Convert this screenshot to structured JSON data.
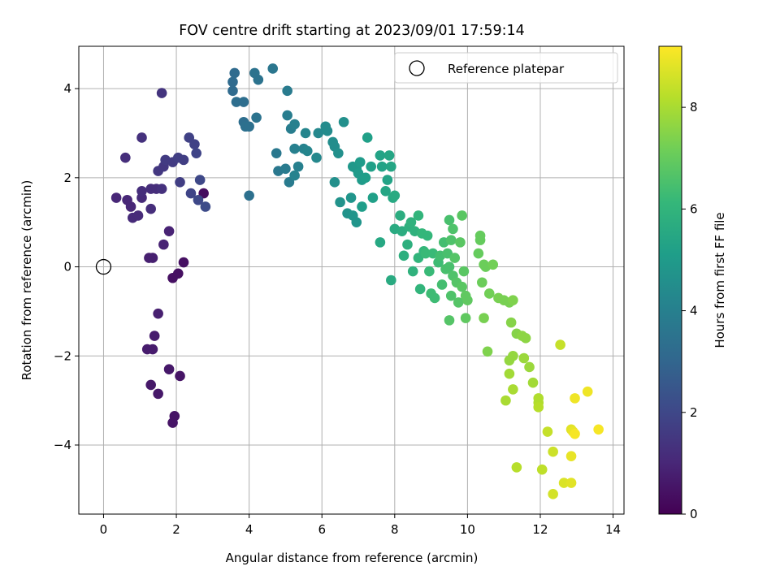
{
  "chart_data": {
    "type": "scatter",
    "title": "FOV centre drift starting at 2023/09/01 17:59:14",
    "xlabel": "Angular distance from reference (arcmin)",
    "ylabel": "Rotation from reference (arcmin)",
    "xlim": [
      -0.68,
      14.3
    ],
    "ylim": [
      -5.55,
      4.95
    ],
    "xticks": [
      "0",
      "2",
      "4",
      "6",
      "8",
      "10",
      "12",
      "14"
    ],
    "yticks": [
      "−4",
      "−2",
      "0",
      "2",
      "4"
    ],
    "grid": true,
    "legend": {
      "position": "top-right",
      "entries": [
        "Reference platepar"
      ]
    },
    "reference_point": {
      "x": 0,
      "y": 0,
      "marker": "open-circle"
    },
    "colorbar": {
      "label": "Hours from first FF file",
      "colormap": "viridis",
      "range": [
        0,
        9.2
      ],
      "ticks": [
        "0",
        "2",
        "4",
        "6",
        "8"
      ],
      "colors": [
        "#440154",
        "#482878",
        "#3e4989",
        "#31688e",
        "#26828e",
        "#1f9e89",
        "#35b779",
        "#6ece58",
        "#b5de2b",
        "#fde725"
      ]
    },
    "series": [
      {
        "points": [
          [
            2.75,
            1.65,
            0.3
          ],
          [
            2.2,
            0.1,
            0.4
          ],
          [
            2.05,
            -0.15,
            0.4
          ],
          [
            1.9,
            -0.25,
            0.4
          ],
          [
            2.1,
            -2.45,
            0.5
          ],
          [
            1.95,
            -3.35,
            0.5
          ],
          [
            1.9,
            -3.5,
            0.5
          ],
          [
            1.8,
            -2.3,
            0.6
          ],
          [
            1.5,
            -2.85,
            0.6
          ],
          [
            1.3,
            -2.65,
            0.6
          ],
          [
            1.35,
            -1.85,
            0.7
          ],
          [
            1.2,
            -1.85,
            0.7
          ],
          [
            1.4,
            -1.55,
            0.7
          ],
          [
            1.5,
            -1.05,
            0.8
          ],
          [
            1.25,
            0.2,
            0.8
          ],
          [
            1.35,
            0.2,
            0.8
          ],
          [
            1.65,
            0.5,
            0.9
          ],
          [
            1.8,
            0.8,
            0.9
          ],
          [
            0.35,
            1.55,
            1.0
          ],
          [
            0.65,
            1.5,
            1.0
          ],
          [
            0.75,
            1.35,
            1.0
          ],
          [
            0.8,
            1.1,
            1.1
          ],
          [
            0.95,
            1.15,
            1.1
          ],
          [
            1.05,
            1.55,
            1.1
          ],
          [
            1.05,
            1.7,
            1.2
          ],
          [
            1.3,
            1.3,
            1.2
          ],
          [
            1.3,
            1.75,
            1.2
          ],
          [
            1.45,
            1.75,
            1.2
          ],
          [
            1.6,
            1.75,
            1.3
          ],
          [
            0.6,
            2.45,
            1.2
          ],
          [
            1.05,
            2.9,
            1.3
          ],
          [
            1.6,
            3.9,
            1.4
          ],
          [
            1.5,
            2.15,
            1.5
          ],
          [
            1.65,
            2.25,
            1.5
          ],
          [
            1.7,
            2.4,
            1.6
          ],
          [
            1.9,
            2.35,
            1.6
          ],
          [
            2.05,
            2.45,
            1.7
          ],
          [
            2.2,
            2.4,
            1.7
          ],
          [
            2.1,
            1.9,
            1.7
          ],
          [
            2.35,
            2.9,
            1.8
          ],
          [
            2.5,
            2.75,
            1.8
          ],
          [
            2.55,
            2.55,
            1.9
          ],
          [
            2.4,
            1.65,
            1.9
          ],
          [
            2.65,
            1.95,
            2.0
          ],
          [
            2.6,
            1.5,
            2.0
          ],
          [
            2.8,
            1.35,
            2.1
          ],
          [
            3.55,
            3.95,
            3.2
          ],
          [
            3.6,
            4.35,
            3.2
          ],
          [
            3.55,
            4.15,
            3.2
          ],
          [
            3.65,
            3.7,
            3.3
          ],
          [
            3.85,
            3.7,
            3.3
          ],
          [
            3.85,
            3.25,
            3.3
          ],
          [
            3.9,
            3.15,
            3.4
          ],
          [
            4.0,
            3.15,
            3.4
          ],
          [
            4.0,
            1.6,
            3.4
          ],
          [
            4.15,
            4.35,
            3.5
          ],
          [
            4.25,
            4.2,
            3.5
          ],
          [
            4.2,
            3.35,
            3.5
          ],
          [
            4.65,
            4.45,
            3.6
          ],
          [
            4.75,
            2.55,
            3.7
          ],
          [
            4.8,
            2.15,
            3.7
          ],
          [
            5.0,
            2.2,
            3.8
          ],
          [
            5.1,
            1.9,
            3.8
          ],
          [
            5.05,
            3.95,
            3.8
          ],
          [
            5.05,
            3.4,
            3.9
          ],
          [
            5.15,
            3.1,
            3.9
          ],
          [
            5.25,
            3.2,
            4.0
          ],
          [
            5.25,
            2.65,
            4.0
          ],
          [
            5.35,
            2.25,
            4.0
          ],
          [
            5.25,
            2.05,
            4.1
          ],
          [
            5.5,
            2.65,
            4.1
          ],
          [
            5.55,
            3.0,
            4.2
          ],
          [
            5.6,
            2.6,
            4.2
          ],
          [
            5.85,
            2.45,
            4.3
          ],
          [
            5.9,
            3.0,
            4.3
          ],
          [
            6.1,
            3.15,
            4.4
          ],
          [
            6.15,
            3.05,
            4.4
          ],
          [
            6.3,
            2.8,
            4.5
          ],
          [
            6.35,
            2.7,
            4.5
          ],
          [
            6.45,
            2.55,
            4.6
          ],
          [
            6.6,
            3.25,
            4.6
          ],
          [
            6.35,
            1.9,
            4.6
          ],
          [
            6.5,
            1.45,
            4.7
          ],
          [
            6.7,
            1.2,
            4.7
          ],
          [
            6.85,
            1.15,
            4.8
          ],
          [
            6.95,
            1.0,
            4.8
          ],
          [
            6.8,
            1.55,
            4.8
          ],
          [
            6.85,
            2.25,
            4.9
          ],
          [
            6.95,
            2.2,
            4.9
          ],
          [
            7.0,
            2.1,
            5.0
          ],
          [
            7.05,
            2.35,
            5.0
          ],
          [
            7.1,
            1.95,
            5.0
          ],
          [
            7.1,
            1.35,
            5.1
          ],
          [
            7.2,
            2.0,
            5.1
          ],
          [
            7.25,
            2.9,
            5.2
          ],
          [
            7.35,
            2.25,
            5.2
          ],
          [
            7.4,
            1.55,
            5.2
          ],
          [
            7.6,
            2.5,
            5.3
          ],
          [
            7.65,
            2.25,
            5.3
          ],
          [
            7.8,
            1.95,
            5.3
          ],
          [
            7.75,
            1.7,
            5.4
          ],
          [
            7.85,
            2.5,
            5.4
          ],
          [
            7.9,
            2.25,
            5.4
          ],
          [
            7.6,
            0.55,
            5.5
          ],
          [
            7.95,
            1.55,
            5.5
          ],
          [
            8.0,
            1.6,
            5.6
          ],
          [
            8.0,
            0.85,
            5.6
          ],
          [
            7.9,
            -0.3,
            5.6
          ],
          [
            8.15,
            1.15,
            5.7
          ],
          [
            8.2,
            0.8,
            5.7
          ],
          [
            8.25,
            0.25,
            5.8
          ],
          [
            8.35,
            0.5,
            5.8
          ],
          [
            8.4,
            0.9,
            5.8
          ],
          [
            8.45,
            1.0,
            5.9
          ],
          [
            8.55,
            0.8,
            5.9
          ],
          [
            8.5,
            -0.1,
            5.9
          ],
          [
            8.65,
            1.15,
            6.0
          ],
          [
            8.65,
            0.2,
            6.0
          ],
          [
            8.7,
            -0.5,
            6.0
          ],
          [
            8.75,
            0.75,
            6.1
          ],
          [
            8.8,
            0.35,
            6.1
          ],
          [
            8.9,
            0.7,
            6.1
          ],
          [
            8.85,
            0.3,
            6.2
          ],
          [
            8.95,
            -0.1,
            6.2
          ],
          [
            9.05,
            0.3,
            6.2
          ],
          [
            9.0,
            -0.6,
            6.3
          ],
          [
            9.1,
            -0.7,
            6.3
          ],
          [
            9.2,
            0.1,
            6.3
          ],
          [
            9.25,
            0.25,
            6.4
          ],
          [
            9.3,
            -0.4,
            6.4
          ],
          [
            9.35,
            0.55,
            6.4
          ],
          [
            9.4,
            -0.05,
            6.5
          ],
          [
            9.45,
            0.3,
            6.5
          ],
          [
            9.5,
            1.05,
            6.5
          ],
          [
            9.5,
            0.0,
            6.5
          ],
          [
            9.55,
            0.6,
            6.6
          ],
          [
            9.6,
            0.85,
            6.6
          ],
          [
            9.55,
            -0.65,
            6.6
          ],
          [
            9.6,
            -0.2,
            6.6
          ],
          [
            9.65,
            0.2,
            6.7
          ],
          [
            9.7,
            -0.35,
            6.7
          ],
          [
            9.75,
            -0.8,
            6.7
          ],
          [
            9.5,
            -1.2,
            6.7
          ],
          [
            9.8,
            0.55,
            6.8
          ],
          [
            9.85,
            1.15,
            6.8
          ],
          [
            9.85,
            -0.45,
            6.8
          ],
          [
            9.9,
            -0.1,
            6.8
          ],
          [
            9.95,
            -0.65,
            6.9
          ],
          [
            10.0,
            -0.75,
            6.9
          ],
          [
            9.95,
            -1.15,
            6.9
          ],
          [
            10.3,
            0.3,
            7.0
          ],
          [
            10.35,
            0.6,
            7.0
          ],
          [
            10.35,
            0.7,
            7.0
          ],
          [
            10.4,
            -0.35,
            7.1
          ],
          [
            10.5,
            0.0,
            7.1
          ],
          [
            10.45,
            0.05,
            7.1
          ],
          [
            10.6,
            -0.6,
            7.2
          ],
          [
            10.7,
            0.05,
            7.2
          ],
          [
            10.85,
            -0.7,
            7.3
          ],
          [
            11.0,
            -0.75,
            7.3
          ],
          [
            11.15,
            -0.8,
            7.3
          ],
          [
            11.25,
            -0.75,
            7.4
          ],
          [
            10.45,
            -1.15,
            7.3
          ],
          [
            10.55,
            -1.9,
            7.4
          ],
          [
            11.2,
            -1.25,
            7.5
          ],
          [
            11.35,
            -1.5,
            7.5
          ],
          [
            11.5,
            -1.55,
            7.6
          ],
          [
            11.6,
            -1.6,
            7.6
          ],
          [
            11.25,
            -2.0,
            7.7
          ],
          [
            11.15,
            -2.1,
            7.7
          ],
          [
            11.55,
            -2.05,
            7.8
          ],
          [
            11.7,
            -2.25,
            7.8
          ],
          [
            11.15,
            -2.4,
            7.9
          ],
          [
            11.8,
            -2.6,
            7.9
          ],
          [
            11.25,
            -2.75,
            8.0
          ],
          [
            11.05,
            -3.0,
            8.0
          ],
          [
            11.95,
            -2.95,
            8.1
          ],
          [
            11.95,
            -3.05,
            8.1
          ],
          [
            11.95,
            -3.15,
            8.2
          ],
          [
            11.35,
            -4.5,
            8.2
          ],
          [
            12.05,
            -4.55,
            8.3
          ],
          [
            12.2,
            -3.7,
            8.4
          ],
          [
            12.35,
            -4.15,
            8.5
          ],
          [
            12.35,
            -5.1,
            8.6
          ],
          [
            12.55,
            -1.75,
            8.4
          ],
          [
            12.65,
            -4.85,
            8.7
          ],
          [
            12.85,
            -4.85,
            8.8
          ],
          [
            12.85,
            -3.65,
            8.8
          ],
          [
            12.9,
            -3.7,
            8.9
          ],
          [
            12.85,
            -4.25,
            8.9
          ],
          [
            12.95,
            -2.95,
            9.0
          ],
          [
            13.3,
            -2.8,
            9.0
          ],
          [
            13.6,
            -3.65,
            9.1
          ],
          [
            12.95,
            -3.75,
            9.1
          ]
        ]
      }
    ]
  }
}
